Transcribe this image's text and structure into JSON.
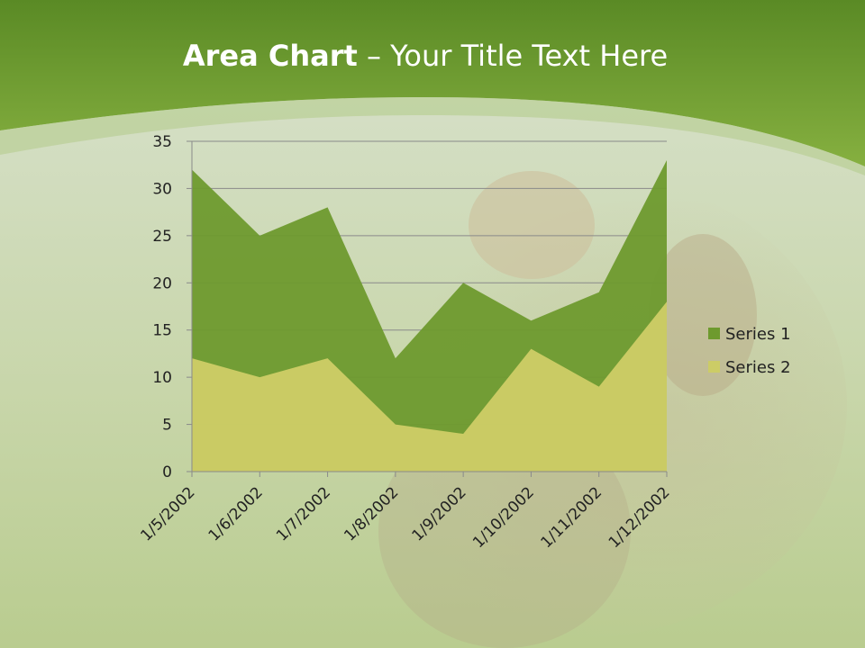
{
  "title": {
    "bold": "Area Chart",
    "rest": " – Your Title Text Here"
  },
  "colors": {
    "header_green": "#6e9e32",
    "series1": "#6e9a2e",
    "series2": "#cccc66"
  },
  "chart_data": {
    "type": "area",
    "categories": [
      "1/5/2002",
      "1/6/2002",
      "1/7/2002",
      "1/8/2002",
      "1/9/2002",
      "1/10/2002",
      "1/11/2002",
      "1/12/2002"
    ],
    "series": [
      {
        "name": "Series 1",
        "values": [
          32,
          25,
          28,
          12,
          20,
          16,
          19,
          33
        ],
        "color": "#6e9a2e"
      },
      {
        "name": "Series 2",
        "values": [
          12,
          10,
          12,
          5,
          4,
          13,
          9,
          18
        ],
        "color": "#cccc66"
      }
    ],
    "ylim": [
      0,
      35
    ],
    "yticks": [
      0,
      5,
      10,
      15,
      20,
      25,
      30,
      35
    ],
    "grid": true,
    "legend": "right"
  }
}
